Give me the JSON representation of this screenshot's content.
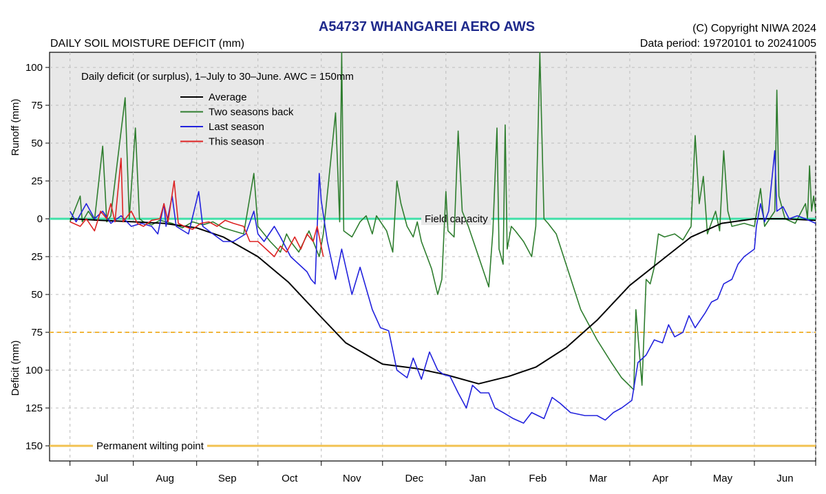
{
  "header": {
    "title": "A54737  WHANGAREI AERO AWS",
    "subtitle": "DAILY SOIL MOISTURE DEFICIT (mm)",
    "copyright": "(C) Copyright NIWA  2024",
    "data_period": "Data period:  19720101  to  20241005"
  },
  "chart_data": {
    "type": "line",
    "annotation": "Daily deficit (or surplus), 1–July to 30–June.  AWC = 150mm",
    "ylabel_top": "Runoff (mm)",
    "ylabel_bottom": "Deficit (mm)",
    "y_axis_note": "Values above 0 are runoff (mm); values below 0 are deficit (mm)",
    "ylim": [
      -160,
      110
    ],
    "xlim": [
      -10,
      365
    ],
    "y_ticks": [
      100,
      75,
      50,
      25,
      0,
      -25,
      -50,
      -75,
      -100,
      -125,
      -150
    ],
    "y_tick_labels": [
      "100",
      "75",
      "50",
      "25",
      "0",
      "25",
      "50",
      "75",
      "100",
      "125",
      "150"
    ],
    "x_month_boundaries": [
      0,
      31,
      62,
      92,
      123,
      153,
      184,
      215,
      243,
      274,
      304,
      335,
      365
    ],
    "x_month_labels": [
      "Jul",
      "Aug",
      "Sep",
      "Oct",
      "Nov",
      "Dec",
      "Jan",
      "Feb",
      "Mar",
      "Apr",
      "May",
      "Jun"
    ],
    "grid": true,
    "legend_position": "top-left",
    "reference_lines": [
      {
        "label": "Field capacity",
        "y": 0,
        "color": "#3fe0a8"
      },
      {
        "label": "",
        "y": -75,
        "color": "#f2b63a"
      },
      {
        "label": "Permanent wilting point",
        "y": -150,
        "color": "#f2c250"
      }
    ],
    "series": [
      {
        "name": "Average",
        "color": "#000000",
        "points": [
          [
            0,
            0
          ],
          [
            15,
            -1
          ],
          [
            31,
            -2
          ],
          [
            46,
            -3
          ],
          [
            62,
            -6
          ],
          [
            75,
            -12
          ],
          [
            92,
            -25
          ],
          [
            107,
            -42
          ],
          [
            123,
            -65
          ],
          [
            135,
            -82
          ],
          [
            153,
            -96
          ],
          [
            170,
            -99
          ],
          [
            184,
            -103
          ],
          [
            200,
            -109
          ],
          [
            215,
            -104
          ],
          [
            228,
            -98
          ],
          [
            243,
            -85
          ],
          [
            258,
            -67
          ],
          [
            274,
            -44
          ],
          [
            289,
            -28
          ],
          [
            304,
            -12
          ],
          [
            319,
            -3
          ],
          [
            335,
            0
          ],
          [
            349,
            0
          ],
          [
            365,
            -1
          ]
        ]
      },
      {
        "name": "Two seasons back",
        "color": "#2e7d2e",
        "points": [
          [
            0,
            -2
          ],
          [
            5,
            15
          ],
          [
            6,
            -2
          ],
          [
            9,
            5
          ],
          [
            12,
            -1
          ],
          [
            16,
            48
          ],
          [
            18,
            -2
          ],
          [
            20,
            2
          ],
          [
            27,
            80
          ],
          [
            29,
            0
          ],
          [
            32,
            60
          ],
          [
            34,
            0
          ],
          [
            36,
            -2
          ],
          [
            40,
            -4
          ],
          [
            44,
            -1
          ],
          [
            50,
            -3
          ],
          [
            55,
            -6
          ],
          [
            60,
            -2
          ],
          [
            65,
            -4
          ],
          [
            70,
            -2
          ],
          [
            75,
            -6
          ],
          [
            80,
            -8
          ],
          [
            85,
            -10
          ],
          [
            90,
            30
          ],
          [
            92,
            -5
          ],
          [
            98,
            -15
          ],
          [
            103,
            -22
          ],
          [
            106,
            -10
          ],
          [
            108,
            -15
          ],
          [
            112,
            -22
          ],
          [
            117,
            -8
          ],
          [
            122,
            -25
          ],
          [
            124,
            -10
          ],
          [
            130,
            70
          ],
          [
            132,
            -2
          ],
          [
            133,
            110
          ],
          [
            134,
            -8
          ],
          [
            138,
            -12
          ],
          [
            142,
            -2
          ],
          [
            145,
            2
          ],
          [
            148,
            -10
          ],
          [
            150,
            2
          ],
          [
            155,
            -8
          ],
          [
            158,
            -22
          ],
          [
            160,
            25
          ],
          [
            162,
            10
          ],
          [
            165,
            -5
          ],
          [
            168,
            -12
          ],
          [
            170,
            -2
          ],
          [
            172,
            -15
          ],
          [
            177,
            -33
          ],
          [
            180,
            -50
          ],
          [
            182,
            -40
          ],
          [
            184,
            18
          ],
          [
            185,
            -8
          ],
          [
            188,
            -12
          ],
          [
            190,
            58
          ],
          [
            192,
            5
          ],
          [
            195,
            -5
          ],
          [
            200,
            -25
          ],
          [
            205,
            -45
          ],
          [
            207,
            -8
          ],
          [
            209,
            60
          ],
          [
            210,
            -20
          ],
          [
            212,
            -30
          ],
          [
            213,
            62
          ],
          [
            214,
            -20
          ],
          [
            216,
            -5
          ],
          [
            218,
            -8
          ],
          [
            222,
            -15
          ],
          [
            226,
            -25
          ],
          [
            228,
            -5
          ],
          [
            230,
            110
          ],
          [
            232,
            0
          ],
          [
            234,
            -3
          ],
          [
            238,
            -10
          ],
          [
            244,
            -35
          ],
          [
            250,
            -60
          ],
          [
            258,
            -80
          ],
          [
            265,
            -95
          ],
          [
            270,
            -105
          ],
          [
            276,
            -113
          ],
          [
            277,
            -60
          ],
          [
            280,
            -110
          ],
          [
            282,
            -40
          ],
          [
            284,
            -43
          ],
          [
            286,
            -32
          ],
          [
            288,
            -10
          ],
          [
            291,
            -12
          ],
          [
            296,
            -10
          ],
          [
            300,
            -14
          ],
          [
            304,
            -5
          ],
          [
            306,
            55
          ],
          [
            308,
            10
          ],
          [
            310,
            28
          ],
          [
            312,
            -10
          ],
          [
            316,
            5
          ],
          [
            318,
            -8
          ],
          [
            320,
            45
          ],
          [
            322,
            5
          ],
          [
            324,
            -5
          ],
          [
            330,
            -3
          ],
          [
            335,
            -5
          ],
          [
            338,
            20
          ],
          [
            340,
            -5
          ],
          [
            345,
            5
          ],
          [
            346,
            85
          ],
          [
            347,
            15
          ],
          [
            350,
            0
          ],
          [
            355,
            -3
          ],
          [
            360,
            10
          ],
          [
            361,
            0
          ],
          [
            362,
            35
          ],
          [
            363,
            5
          ],
          [
            364,
            15
          ],
          [
            365,
            5
          ]
        ]
      },
      {
        "name": "Last season",
        "color": "#2222dd",
        "points": [
          [
            0,
            5
          ],
          [
            3,
            -2
          ],
          [
            8,
            10
          ],
          [
            12,
            0
          ],
          [
            16,
            5
          ],
          [
            20,
            -3
          ],
          [
            25,
            2
          ],
          [
            30,
            -5
          ],
          [
            35,
            -3
          ],
          [
            40,
            -5
          ],
          [
            43,
            -10
          ],
          [
            46,
            10
          ],
          [
            47,
            -5
          ],
          [
            50,
            15
          ],
          [
            52,
            -5
          ],
          [
            58,
            -10
          ],
          [
            63,
            18
          ],
          [
            65,
            -5
          ],
          [
            70,
            -10
          ],
          [
            75,
            -15
          ],
          [
            80,
            -15
          ],
          [
            86,
            -10
          ],
          [
            90,
            5
          ],
          [
            92,
            -10
          ],
          [
            95,
            -15
          ],
          [
            100,
            -5
          ],
          [
            103,
            -12
          ],
          [
            108,
            -25
          ],
          [
            112,
            -30
          ],
          [
            116,
            -35
          ],
          [
            118,
            -40
          ],
          [
            120,
            -43
          ],
          [
            122,
            30
          ],
          [
            123,
            12
          ],
          [
            126,
            -15
          ],
          [
            130,
            -40
          ],
          [
            133,
            -20
          ],
          [
            138,
            -50
          ],
          [
            142,
            -32
          ],
          [
            148,
            -60
          ],
          [
            152,
            -72
          ],
          [
            156,
            -74
          ],
          [
            160,
            -100
          ],
          [
            165,
            -105
          ],
          [
            168,
            -92
          ],
          [
            172,
            -106
          ],
          [
            176,
            -88
          ],
          [
            180,
            -100
          ],
          [
            183,
            -103
          ],
          [
            186,
            -104
          ],
          [
            190,
            -115
          ],
          [
            194,
            -125
          ],
          [
            197,
            -110
          ],
          [
            201,
            -115
          ],
          [
            205,
            -115
          ],
          [
            208,
            -125
          ],
          [
            212,
            -128
          ],
          [
            217,
            -132
          ],
          [
            222,
            -135
          ],
          [
            226,
            -128
          ],
          [
            232,
            -132
          ],
          [
            236,
            -118
          ],
          [
            240,
            -122
          ],
          [
            245,
            -128
          ],
          [
            252,
            -130
          ],
          [
            258,
            -130
          ],
          [
            262,
            -133
          ],
          [
            266,
            -128
          ],
          [
            270,
            -125
          ],
          [
            275,
            -120
          ],
          [
            278,
            -95
          ],
          [
            282,
            -90
          ],
          [
            286,
            -80
          ],
          [
            290,
            -82
          ],
          [
            293,
            -70
          ],
          [
            296,
            -78
          ],
          [
            300,
            -75
          ],
          [
            303,
            -64
          ],
          [
            306,
            -72
          ],
          [
            311,
            -62
          ],
          [
            314,
            -55
          ],
          [
            317,
            -53
          ],
          [
            320,
            -43
          ],
          [
            324,
            -40
          ],
          [
            327,
            -30
          ],
          [
            330,
            -25
          ],
          [
            335,
            -20
          ],
          [
            336,
            -5
          ],
          [
            338,
            10
          ],
          [
            340,
            -2
          ],
          [
            342,
            5
          ],
          [
            345,
            45
          ],
          [
            346,
            5
          ],
          [
            349,
            8
          ],
          [
            352,
            0
          ],
          [
            356,
            2
          ],
          [
            360,
            0
          ],
          [
            365,
            -3
          ]
        ]
      },
      {
        "name": "This season",
        "color": "#dd2222",
        "points": [
          [
            0,
            -2
          ],
          [
            5,
            -5
          ],
          [
            8,
            0
          ],
          [
            12,
            -8
          ],
          [
            15,
            5
          ],
          [
            18,
            0
          ],
          [
            20,
            10
          ],
          [
            22,
            -2
          ],
          [
            25,
            40
          ],
          [
            26,
            -2
          ],
          [
            30,
            5
          ],
          [
            33,
            -3
          ],
          [
            36,
            -5
          ],
          [
            40,
            -1
          ],
          [
            44,
            0
          ],
          [
            46,
            10
          ],
          [
            48,
            -2
          ],
          [
            51,
            25
          ],
          [
            53,
            -3
          ],
          [
            56,
            -5
          ],
          [
            60,
            -7
          ],
          [
            64,
            -3
          ],
          [
            68,
            -2
          ],
          [
            72,
            -5
          ],
          [
            76,
            -1
          ],
          [
            80,
            -3
          ],
          [
            85,
            -5
          ],
          [
            88,
            -15
          ],
          [
            92,
            -15
          ],
          [
            96,
            -20
          ],
          [
            100,
            -25
          ],
          [
            103,
            -18
          ],
          [
            106,
            -22
          ],
          [
            110,
            -12
          ],
          [
            113,
            -20
          ],
          [
            116,
            -10
          ],
          [
            119,
            -15
          ],
          [
            121,
            -5
          ],
          [
            124,
            -25
          ]
        ]
      }
    ]
  }
}
